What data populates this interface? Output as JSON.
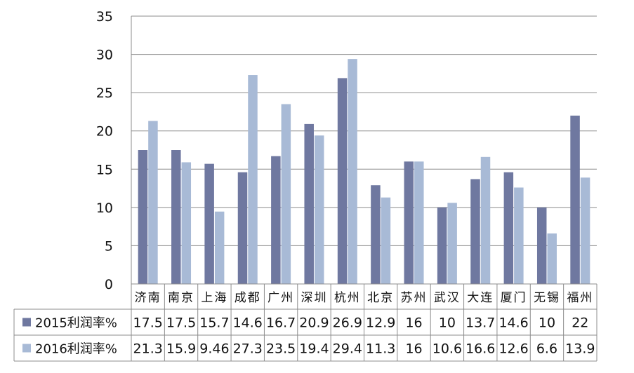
{
  "chart_data": {
    "type": "bar",
    "categories": [
      "济南",
      "南京",
      "上海",
      "成都",
      "广州",
      "深圳",
      "杭州",
      "北京",
      "苏州",
      "武汉",
      "大连",
      "厦门",
      "无锡",
      "福州"
    ],
    "series": [
      {
        "name": "2015利润率%",
        "values": [
          17.5,
          17.5,
          15.7,
          14.6,
          16.7,
          20.9,
          26.9,
          12.9,
          16,
          10,
          13.7,
          14.6,
          10,
          22
        ],
        "labels": [
          "17.5",
          "17.5",
          "15.7",
          "14.6",
          "16.7",
          "20.9",
          "26.9",
          "12.9",
          "16",
          "10",
          "13.7",
          "14.6",
          "10",
          "22"
        ],
        "color": "#6f78a0"
      },
      {
        "name": "2016利润率%",
        "values": [
          21.3,
          15.9,
          9.46,
          27.3,
          23.5,
          19.4,
          29.4,
          11.3,
          16,
          10.6,
          16.6,
          12.6,
          6.6,
          13.9
        ],
        "labels": [
          "21.3",
          "15.9",
          "9.46",
          "27.3",
          "23.5",
          "19.4",
          "29.4",
          "11.3",
          "16",
          "10.6",
          "16.6",
          "12.6",
          "6.6",
          "13.9"
        ],
        "color": "#a8bad6"
      }
    ],
    "ylim": [
      0,
      35
    ],
    "yticks": [
      "0",
      "5",
      "10",
      "15",
      "20",
      "25",
      "30",
      "35"
    ],
    "grid": true,
    "legend": "data-table-left",
    "data_table": true
  }
}
